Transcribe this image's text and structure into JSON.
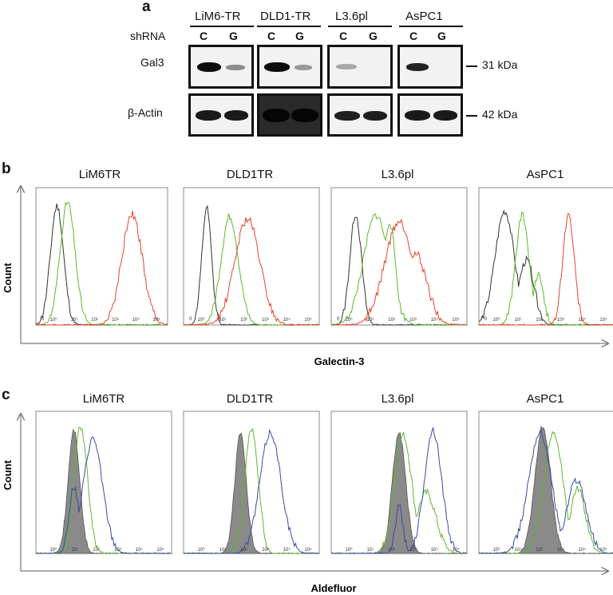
{
  "panel_a": {
    "label": "a",
    "shrna_label": "shRNA",
    "lanes": [
      {
        "name": "LiM6-TR",
        "c": "C",
        "g": "G"
      },
      {
        "name": "DLD1-TR",
        "c": "C",
        "g": "G"
      },
      {
        "name": "L3.6pl",
        "c": "C",
        "g": "G"
      },
      {
        "name": "AsPC1",
        "c": "C",
        "g": "G"
      }
    ],
    "rows": [
      {
        "label": "Gal3",
        "mw": "31 kDa"
      },
      {
        "label": "β-Actin",
        "mw": "42 kDa"
      }
    ]
  },
  "panel_b": {
    "label": "b",
    "ylabel": "Count",
    "xlabel": "Galectin-3",
    "plots": [
      "LiM6TR",
      "DLD1TR",
      "L3.6pl",
      "AsPC1"
    ],
    "ticks": [
      "10⁰",
      "10¹",
      "10²",
      "10³",
      "10⁴",
      "10⁵"
    ],
    "zero": "0",
    "colors": {
      "isotype": "#333333",
      "gal3_knockdown": "#5cb82a",
      "control": "#e8422a"
    }
  },
  "panel_c": {
    "label": "c",
    "ylabel": "Count",
    "xlabel": "Aldefluor",
    "plots": [
      "LiM6TR",
      "DLD1TR",
      "L3.6pl",
      "AsPC1"
    ],
    "ticks": [
      "10⁰",
      "10¹",
      "10²",
      "10³",
      "10⁴",
      "10⁵"
    ],
    "colors": {
      "filled": "#8a8a8a",
      "green": "#5cb82a",
      "blue": "#3a4aa8"
    }
  }
}
